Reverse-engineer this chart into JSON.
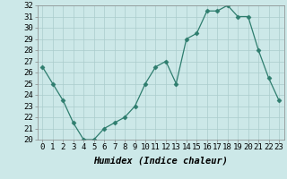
{
  "x": [
    0,
    1,
    2,
    3,
    4,
    5,
    6,
    7,
    8,
    9,
    10,
    11,
    12,
    13,
    14,
    15,
    16,
    17,
    18,
    19,
    20,
    21,
    22,
    23
  ],
  "y": [
    26.5,
    25,
    23.5,
    21.5,
    20,
    20,
    21,
    21.5,
    22,
    23,
    25,
    26.5,
    27,
    25,
    29,
    29.5,
    31.5,
    31.5,
    32,
    31,
    31,
    28,
    25.5,
    23.5
  ],
  "line_color": "#2e7d6e",
  "marker": "D",
  "marker_size": 2.5,
  "bg_color": "#cce8e8",
  "grid_color": "#aacccc",
  "xlabel": "Humidex (Indice chaleur)",
  "xlabel_fontsize": 7.5,
  "tick_fontsize": 6.5,
  "ylim": [
    20,
    32
  ],
  "xlim": [
    -0.5,
    23.5
  ],
  "yticks": [
    20,
    21,
    22,
    23,
    24,
    25,
    26,
    27,
    28,
    29,
    30,
    31,
    32
  ],
  "xticks": [
    0,
    1,
    2,
    3,
    4,
    5,
    6,
    7,
    8,
    9,
    10,
    11,
    12,
    13,
    14,
    15,
    16,
    17,
    18,
    19,
    20,
    21,
    22,
    23
  ]
}
